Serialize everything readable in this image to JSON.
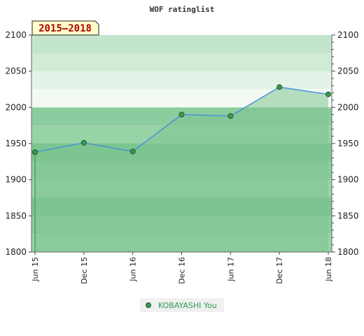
{
  "colors": {
    "band_colors": [
      "#98d3a6",
      "#8bcd9e",
      "#7cc590",
      "#98d3a6",
      "#8bcd9e",
      "#7cc590"
    ],
    "band_colors_above": [
      "#f3faf4",
      "#e4f3e7",
      "#d0ebd6",
      "#c3e5cb",
      "#b4dfc0"
    ],
    "line": "#4a90d9",
    "area": "#7dc48f",
    "marker": "#3a9a4f",
    "badge_bg": "#ffffcc",
    "legend_bg": "#f0f0f0"
  },
  "chart_data": {
    "type": "area",
    "title": "WOF ratinglist",
    "badge": "2015–2018",
    "x": [
      "Jun 15",
      "Dec 15",
      "Jun 16",
      "Dec 16",
      "Jun 17",
      "Dec 17",
      "Jun 18"
    ],
    "series": [
      {
        "name": "KOBAYASHI You",
        "values": [
          1938,
          1951,
          1939,
          1990,
          1988,
          2028,
          2018
        ]
      }
    ],
    "ylim": [
      1800,
      2100
    ],
    "yticks": [
      1800,
      1850,
      1900,
      1950,
      2000,
      2050,
      2100
    ],
    "y_tick_labels": [
      "1800",
      "1850",
      "1900",
      "1950",
      "2000",
      "2050",
      "2100"
    ],
    "grid": false,
    "legend": "bottom-center",
    "axes": "left-and-right"
  }
}
